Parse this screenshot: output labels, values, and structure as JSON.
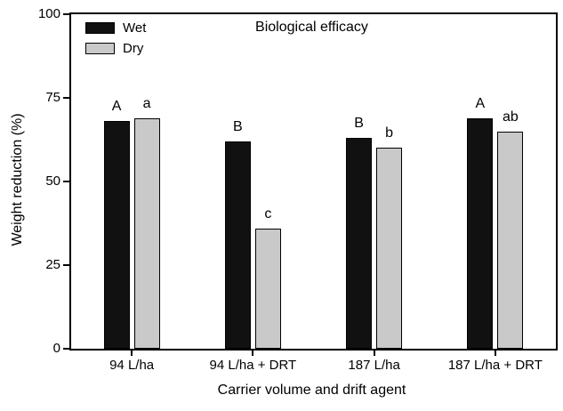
{
  "chart_data": {
    "type": "bar",
    "title": "Biological efficacy",
    "xlabel": "Carrier volume and drift agent",
    "ylabel": "Weight reduction (%)",
    "categories": [
      "94 L/ha",
      "94 L/ha + DRT",
      "187 L/ha",
      "187 L/ha + DRT"
    ],
    "series": [
      {
        "name": "Wet",
        "color": "#111111",
        "values": [
          68,
          62,
          63,
          69
        ],
        "significance_labels": [
          "A",
          "B",
          "B",
          "A"
        ]
      },
      {
        "name": "Dry",
        "color": "#c9c9c9",
        "values": [
          69,
          36,
          60,
          65
        ],
        "significance_labels": [
          "a",
          "c",
          "b",
          "ab"
        ]
      }
    ],
    "ylim": [
      0,
      100
    ],
    "yticks": [
      0,
      25,
      50,
      75,
      100
    ],
    "grid": "off",
    "legend_position": "top-left"
  }
}
